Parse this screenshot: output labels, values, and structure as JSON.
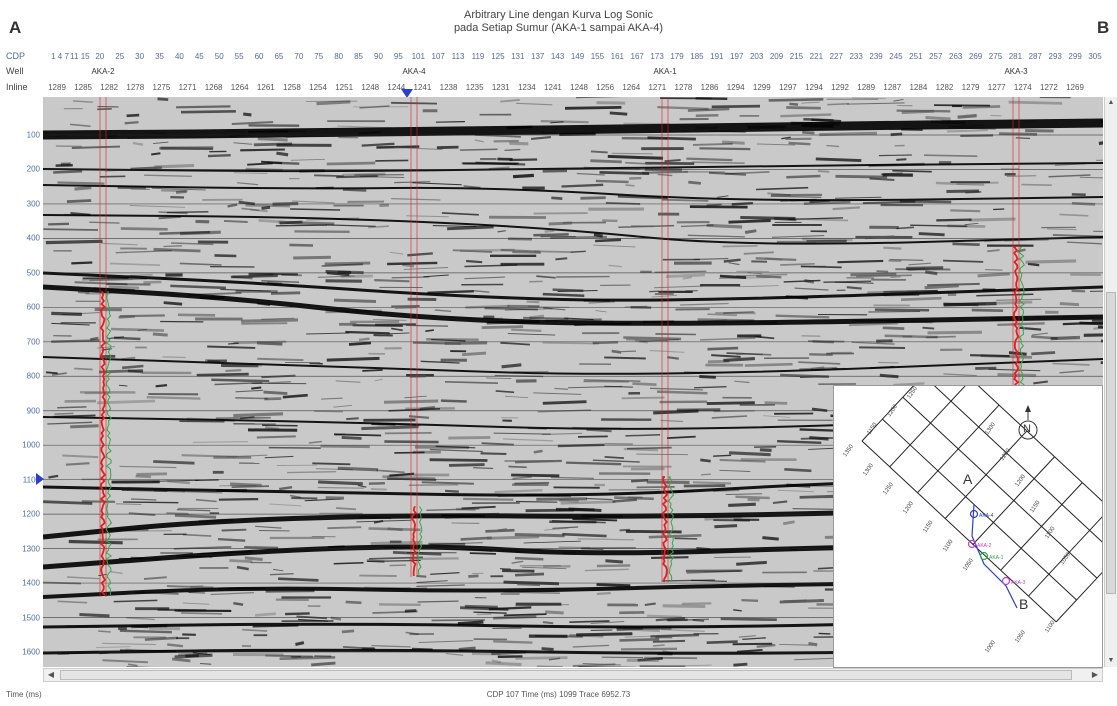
{
  "window": {
    "corner_left": "A",
    "corner_right": "B",
    "title_line1": "Arbitrary Line dengan Kurva Log Sonic",
    "title_line2": "pada Setiap Sumur (AKA-1 sampai AKA-4)"
  },
  "header": {
    "cdp_label": "CDP",
    "well_label": "Well",
    "inline_label": "Inline",
    "cdp_values": [
      "1 4 7",
      "11 15",
      "20",
      "25",
      "30",
      "35",
      "40",
      "45",
      "50",
      "55",
      "60",
      "65",
      "70",
      "75",
      "80",
      "85",
      "90",
      "95",
      "101",
      "107",
      "113",
      "119",
      "125",
      "131",
      "137",
      "143",
      "149",
      "155",
      "161",
      "167",
      "173",
      "179",
      "185",
      "191",
      "197",
      "203",
      "209",
      "215",
      "221",
      "227",
      "233",
      "239",
      "245",
      "251",
      "257",
      "263",
      "269",
      "275",
      "281",
      "287",
      "293",
      "299",
      "305"
    ],
    "inline_values": [
      "1289",
      "1285",
      "1282",
      "1278",
      "1275",
      "1271",
      "1268",
      "1264",
      "1261",
      "1258",
      "1254",
      "1251",
      "1248",
      "1244",
      "1241",
      "1238",
      "1235",
      "1231",
      "1234",
      "1241",
      "1248",
      "1256",
      "1264",
      "1271",
      "1278",
      "1286",
      "1294",
      "1299",
      "1297",
      "1294",
      "1292",
      "1289",
      "1287",
      "1284",
      "1282",
      "1279",
      "1277",
      "1274",
      "1272",
      "1269"
    ],
    "wells": [
      "AKA-2",
      "AKA-4",
      "AKA-1",
      "AKA-3"
    ]
  },
  "axis": {
    "time_labels": [
      "100",
      "200",
      "300",
      "400",
      "500",
      "600",
      "700",
      "800",
      "900",
      "1000",
      "1100",
      "1200",
      "1300",
      "1400",
      "1500",
      "1600"
    ]
  },
  "status": {
    "left": "Time (ms)",
    "center": "CDP 107  Time (ms) 1099  Trace 6952.73"
  },
  "basemap": {
    "letter_a": "A",
    "letter_b": "B",
    "north": "N",
    "grid_labels_top": [
      "1150",
      "1200",
      "1250",
      "1300"
    ],
    "grid_labels_left": [
      "1350",
      "1300",
      "1250",
      "1200",
      "1150",
      "1100",
      "1050"
    ],
    "grid_labels_right": [
      "1300",
      "1250",
      "1200",
      "1150",
      "1100",
      "1050"
    ],
    "grid_labels_bottom": [
      "1000",
      "1050",
      "1100"
    ],
    "well_labels": [
      "AKA-4",
      "AKA-2",
      "AKA-1",
      "AKA-3"
    ]
  },
  "colors": {
    "well_track": "#e02020",
    "log_curve": "#2fa84a",
    "accent_blue": "#2a3fd0",
    "header_blue": "#4d6fa8"
  },
  "icons": {
    "cursor_marker": "triangle-down-icon",
    "time_cursor": "triangle-right-icon",
    "north_arrow": "north-arrow-icon"
  }
}
